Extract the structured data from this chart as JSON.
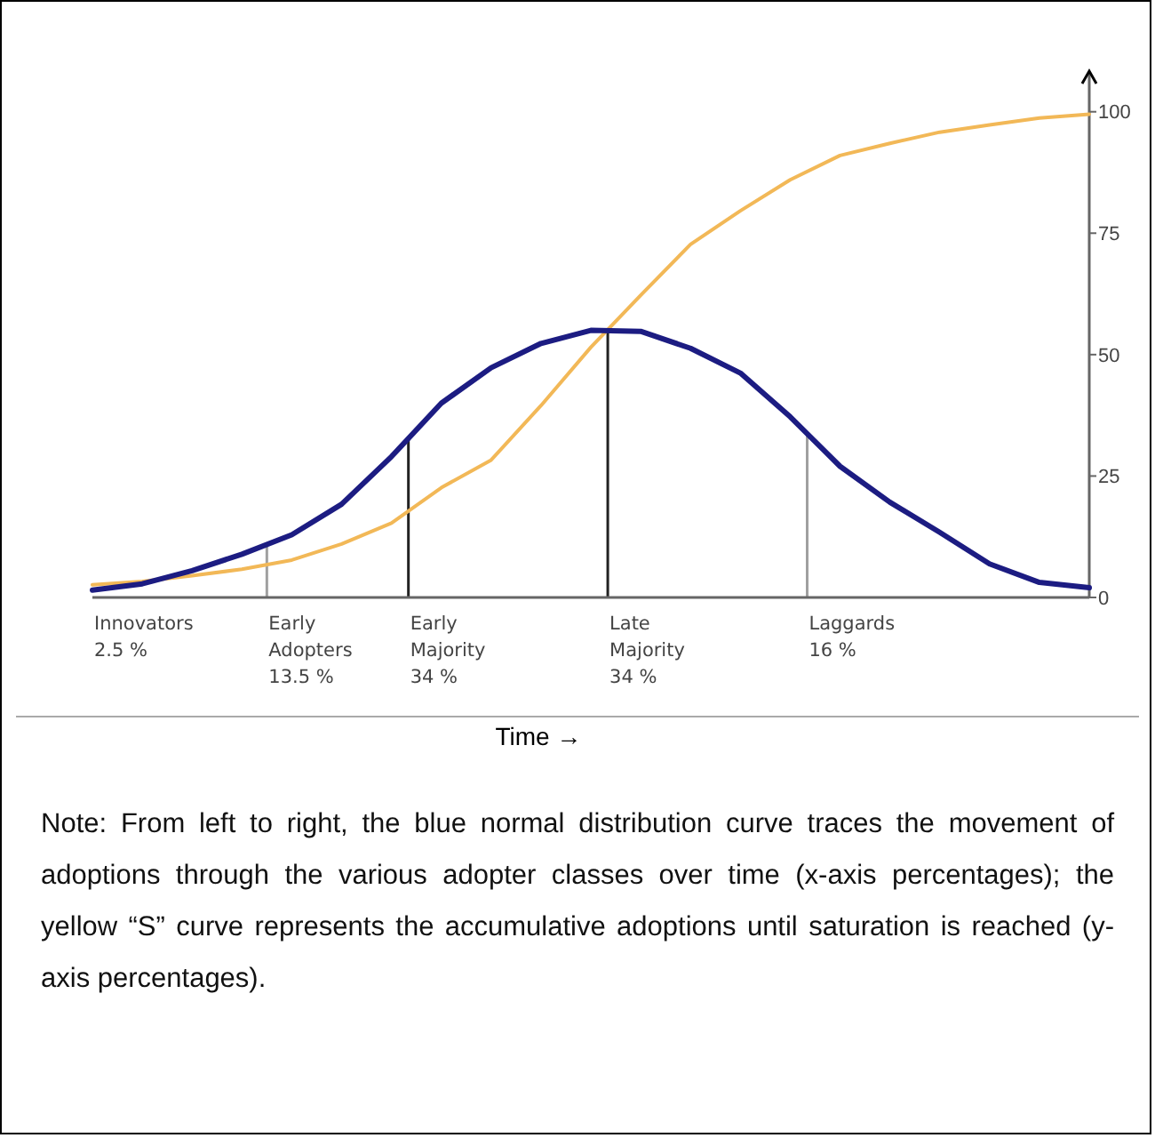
{
  "chart_data": {
    "type": "line",
    "xlabel": "Time →",
    "categories": [
      null,
      null,
      null,
      null,
      null,
      null,
      null,
      null,
      null,
      null,
      null,
      null,
      null,
      null,
      null,
      null,
      null,
      null,
      null,
      null,
      null
    ],
    "ylim": [
      0,
      108
    ],
    "yticks": [
      0,
      25,
      50,
      75,
      100
    ],
    "tick_labels": "y",
    "grid": false,
    "marker": "none",
    "line_style": "solid",
    "series": [
      {
        "type": "line",
        "color": "#f2b857",
        "values": [
          2.6,
          3.3,
          4.5,
          5.8,
          7.7,
          11,
          15.3,
          22.6,
          28.3,
          39.5,
          51.5,
          62.2,
          72.7,
          79.6,
          86,
          91,
          93.5,
          95.8,
          97.3,
          98.7,
          99.5
        ]
      },
      {
        "type": "line",
        "color": "#1c1c82",
        "values": [
          1.5,
          2.8,
          5.5,
          8.9,
          12.9,
          19.2,
          29,
          40,
          47.3,
          52.3,
          55,
          54.8,
          51.3,
          46.2,
          37.2,
          27,
          19.6,
          13.4,
          6.9,
          3.1,
          2
        ]
      }
    ],
    "annotations": [
      "Innovators\n2.5 %",
      "Early\nAdopters\n13.5 %",
      "Early\nMajority\n34 %",
      "Late\nMajority\n34 %",
      "Laggards\n16 %",
      "Note: From left to right, the blue normal distribution curve traces the movement of adoptions through the various adopter classes over time (x-axis percentages); the yellow “S” curve represents the accumulative adoptions until saturation is reached (y-axis percentages)."
    ]
  }
}
